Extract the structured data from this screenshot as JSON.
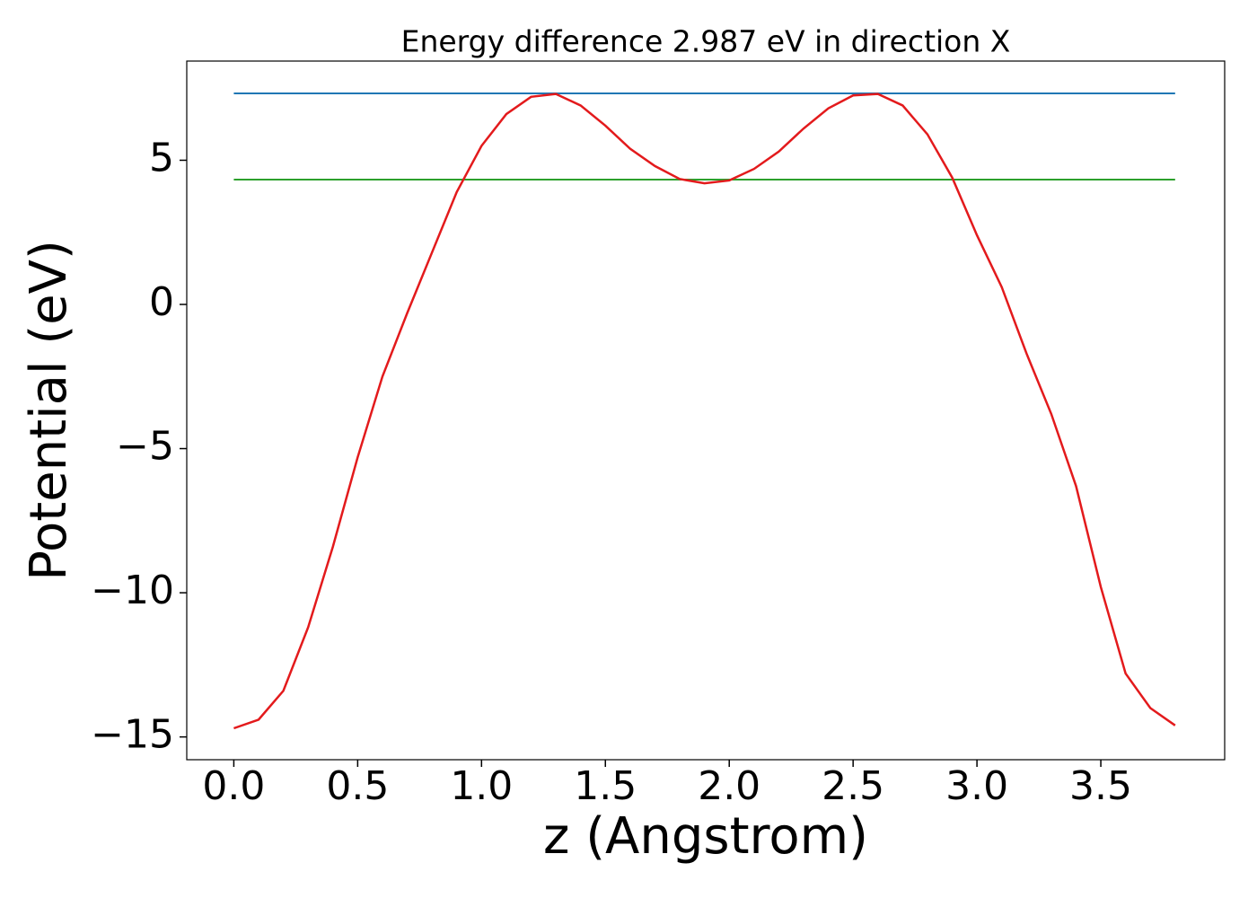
{
  "chart_data": {
    "type": "line",
    "title": "Energy difference 2.987 eV in direction X",
    "xlabel": "z (Angstrom)",
    "ylabel": "Potential (eV)",
    "x": [
      0,
      0.1,
      0.2,
      0.3,
      0.4,
      0.5,
      0.6,
      0.7,
      0.8,
      0.9,
      1.0,
      1.1,
      1.2,
      1.3,
      1.4,
      1.5,
      1.6,
      1.7,
      1.8,
      1.9,
      2.0,
      2.1,
      2.2,
      2.3,
      2.4,
      2.5,
      2.6,
      2.7,
      2.8,
      2.9,
      3.0,
      3.1,
      3.2,
      3.3,
      3.4,
      3.5,
      3.6,
      3.7,
      3.8
    ],
    "series": [
      {
        "color": "#e31a1c",
        "values": [
          -14.7,
          -14.4,
          -13.4,
          -11.2,
          -8.4,
          -5.3,
          -2.5,
          -0.3,
          1.8,
          3.9,
          5.5,
          6.6,
          7.2,
          7.3,
          6.9,
          6.2,
          5.4,
          4.8,
          4.35,
          4.2,
          4.3,
          4.7,
          5.3,
          6.1,
          6.8,
          7.25,
          7.3,
          6.9,
          5.9,
          4.4,
          2.4,
          0.6,
          -1.7,
          -3.8,
          -6.3,
          -9.8,
          -12.8,
          -14.0,
          -14.6
        ]
      }
    ],
    "hlines": [
      {
        "y": 7.32,
        "color": "#1f77b4"
      },
      {
        "y": 4.33,
        "color": "#2ca02c"
      }
    ],
    "xlim": [
      -0.19,
      4.0
    ],
    "ylim": [
      -15.79,
      8.44
    ],
    "xticks": [
      {
        "value": 0,
        "label": "0.0"
      },
      {
        "value": 0.5,
        "label": "0.5"
      },
      {
        "value": 1,
        "label": "1.0"
      },
      {
        "value": 1.5,
        "label": "1.5"
      },
      {
        "value": 2,
        "label": "2.0"
      },
      {
        "value": 2.5,
        "label": "2.5"
      },
      {
        "value": 3,
        "label": "3.0"
      },
      {
        "value": 3.5,
        "label": "3.5"
      }
    ],
    "yticks": [
      {
        "value": -15,
        "label": "−15"
      },
      {
        "value": -10,
        "label": "−10"
      },
      {
        "value": -5,
        "label": "−5"
      },
      0,
      5
    ],
    "grid": false
  }
}
